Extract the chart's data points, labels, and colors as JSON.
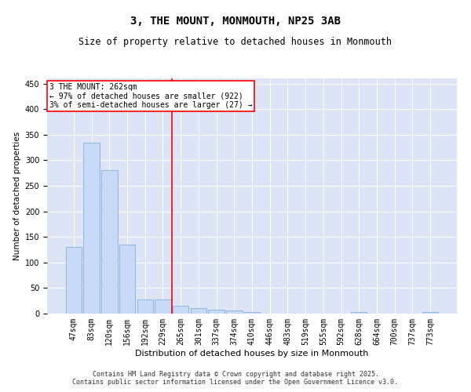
{
  "title": "3, THE MOUNT, MONMOUTH, NP25 3AB",
  "subtitle": "Size of property relative to detached houses in Monmouth",
  "xlabel": "Distribution of detached houses by size in Monmouth",
  "ylabel": "Number of detached properties",
  "categories": [
    "47sqm",
    "83sqm",
    "120sqm",
    "156sqm",
    "192sqm",
    "229sqm",
    "265sqm",
    "301sqm",
    "337sqm",
    "374sqm",
    "410sqm",
    "446sqm",
    "483sqm",
    "519sqm",
    "555sqm",
    "592sqm",
    "628sqm",
    "664sqm",
    "700sqm",
    "737sqm",
    "773sqm"
  ],
  "values": [
    130,
    335,
    280,
    135,
    28,
    28,
    15,
    10,
    7,
    6,
    3,
    0,
    0,
    0,
    0,
    0,
    3,
    0,
    0,
    0,
    3
  ],
  "bar_color": "#c9daf8",
  "bar_edge_color": "#6fa8dc",
  "vline_index": 6,
  "vline_color": "red",
  "annotation_text": "3 THE MOUNT: 262sqm\n← 97% of detached houses are smaller (922)\n3% of semi-detached houses are larger (27) →",
  "annotation_box_color": "white",
  "annotation_box_edge": "red",
  "ylim": [
    0,
    460
  ],
  "yticks": [
    0,
    50,
    100,
    150,
    200,
    250,
    300,
    350,
    400,
    450
  ],
  "background_color": "#dce4f5",
  "footer_line1": "Contains HM Land Registry data © Crown copyright and database right 2025.",
  "footer_line2": "Contains public sector information licensed under the Open Government Licence v3.0.",
  "title_fontsize": 10,
  "subtitle_fontsize": 8.5,
  "xlabel_fontsize": 8,
  "ylabel_fontsize": 7.5,
  "tick_fontsize": 7,
  "annotation_fontsize": 7,
  "footer_fontsize": 6
}
